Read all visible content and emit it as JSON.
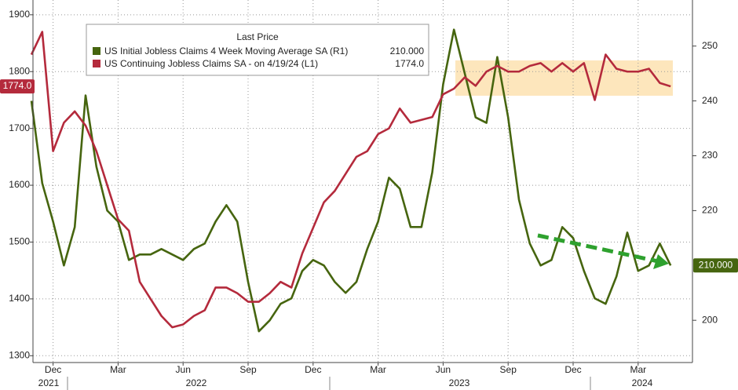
{
  "chart_data": {
    "type": "line",
    "legend_title": "Last Price",
    "categories": [
      null,
      null,
      "Dec",
      null,
      null,
      null,
      null,
      null,
      "Mar",
      null,
      null,
      null,
      null,
      null,
      "Jun",
      null,
      null,
      null,
      null,
      null,
      "Sep",
      null,
      null,
      null,
      null,
      null,
      "Dec",
      null,
      null,
      null,
      null,
      null,
      "Mar",
      null,
      null,
      null,
      null,
      null,
      "Jun",
      null,
      null,
      null,
      null,
      null,
      "Sep",
      null,
      null,
      null,
      null,
      null,
      "Dec",
      null,
      null,
      null,
      null,
      null,
      "Mar",
      null,
      null,
      null
    ],
    "years": [
      "2021",
      "2022",
      "2023",
      "2024"
    ],
    "series": [
      {
        "name": "US Initial Jobless Claims 4 Week Moving Average SA  (R1)",
        "last_label": "210.000",
        "color": "#46650f",
        "axis": "y2",
        "values": [
          240,
          225,
          218,
          210,
          217,
          241,
          228,
          220,
          218,
          211,
          212,
          212,
          213,
          212,
          211,
          213,
          214,
          218,
          221,
          218,
          207,
          198,
          200,
          203,
          204,
          209,
          211,
          210,
          207,
          205,
          207,
          213,
          218,
          226,
          224,
          217,
          217,
          227,
          243,
          253,
          245,
          237,
          236,
          248,
          237,
          222,
          214,
          210,
          211,
          217,
          215,
          209,
          204,
          203,
          208,
          216,
          209,
          210,
          214,
          210
        ]
      },
      {
        "name": "US Continuing Jobless Claims SA -  on 4/19/24  (L1)",
        "last_label": "1774.0",
        "color": "#b42a3c",
        "values": [
          1830,
          1870,
          1660,
          1710,
          1730,
          1705,
          1660,
          1600,
          1540,
          1520,
          1430,
          1400,
          1370,
          1350,
          1355,
          1370,
          1380,
          1420,
          1420,
          1410,
          1395,
          1395,
          1410,
          1430,
          1420,
          1480,
          1525,
          1570,
          1590,
          1620,
          1650,
          1660,
          1690,
          1700,
          1735,
          1710,
          1715,
          1720,
          1760,
          1770,
          1790,
          1775,
          1800,
          1810,
          1800,
          1800,
          1810,
          1815,
          1800,
          1815,
          1800,
          1815,
          1750,
          1830,
          1805,
          1800,
          1800,
          1805,
          1780,
          1774
        ]
      }
    ],
    "ylim": [
      1288,
      1926
    ],
    "yticks": [
      1300,
      1400,
      1500,
      1600,
      1700,
      1800,
      1900
    ],
    "y2lim": [
      192.3,
      258.4
    ],
    "y2ticks": [
      200,
      220,
      230,
      240,
      250
    ],
    "grid": true
  }
}
